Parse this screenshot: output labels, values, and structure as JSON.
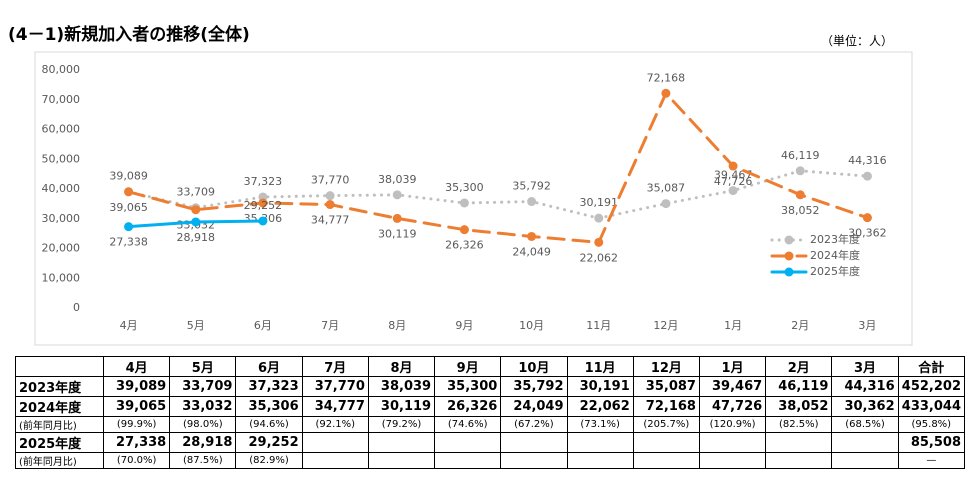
{
  "chart_data": {
    "type": "line",
    "title": "(4－1)新規加入者の推移(全体)",
    "unit_label": "（単位：人）",
    "categories": [
      "4月",
      "5月",
      "6月",
      "7月",
      "8月",
      "9月",
      "10月",
      "11月",
      "12月",
      "1月",
      "2月",
      "3月"
    ],
    "series": [
      {
        "name": "2023年度",
        "color": "#bfbfbf",
        "line_style": "dotted",
        "values": [
          39089,
          33709,
          37323,
          37770,
          38039,
          35300,
          35792,
          30191,
          35087,
          39467,
          46119,
          44316
        ],
        "value_labels": [
          "39,089",
          "33,709",
          "37,323",
          "37,770",
          "38,039",
          "35,300",
          "35,792",
          "30,191",
          "35,087",
          "39,467",
          "46,119",
          "44,316"
        ]
      },
      {
        "name": "2024年度",
        "color": "#ed7d31",
        "line_style": "dashed",
        "values": [
          39065,
          33032,
          35306,
          34777,
          30119,
          26326,
          24049,
          22062,
          72168,
          47726,
          38052,
          30362
        ],
        "value_labels": [
          "39,065",
          "33,032",
          "35,306",
          "34,777",
          "30,119",
          "26,326",
          "24,049",
          "22,062",
          "72,168",
          "47,726",
          "38,052",
          "30,362"
        ]
      },
      {
        "name": "2025年度",
        "color": "#00b0f0",
        "line_style": "solid",
        "values": [
          27338,
          28918,
          29252,
          null,
          null,
          null,
          null,
          null,
          null,
          null,
          null,
          null
        ],
        "value_labels": [
          "27,338",
          "28,918",
          "29,252",
          null,
          null,
          null,
          null,
          null,
          null,
          null,
          null,
          null
        ]
      }
    ],
    "ylim": [
      0,
      80000
    ],
    "yticks": [
      0,
      {
        "value": 10000,
        "label": "10,000"
      },
      {
        "value": 20000,
        "label": "20,000"
      },
      {
        "value": 30000,
        "label": "30,000"
      },
      {
        "value": 40000,
        "label": "40,000"
      },
      {
        "value": 50000,
        "label": "50,000"
      },
      {
        "value": 60000,
        "label": "60,000"
      },
      {
        "value": 70000,
        "label": "70,000"
      },
      {
        "value": 80000,
        "label": "80,000"
      }
    ],
    "grid": false
  },
  "table": {
    "total_header": "合計",
    "rows": [
      {
        "label": "2023年度",
        "cells": [
          "39,089",
          "33,709",
          "37,323",
          "37,770",
          "38,039",
          "35,300",
          "35,792",
          "30,191",
          "35,087",
          "39,467",
          "46,119",
          "44,316",
          "452,202"
        ]
      },
      {
        "label": "2024年度",
        "cells": [
          "39,065",
          "33,032",
          "35,306",
          "34,777",
          "30,119",
          "26,326",
          "24,049",
          "22,062",
          "72,168",
          "47,726",
          "38,052",
          "30,362",
          "433,044"
        ]
      },
      {
        "label": "(前年同月比)",
        "cells": [
          "(99.9%)",
          "(98.0%)",
          "(94.6%)",
          "(92.1%)",
          "(79.2%)",
          "(74.6%)",
          "(67.2%)",
          "(73.1%)",
          "(205.7%)",
          "(120.9%)",
          "(82.5%)",
          "(68.5%)",
          "(95.8%)"
        ]
      },
      {
        "label": "2025年度",
        "cells": [
          "27,338",
          "28,918",
          "29,252",
          null,
          null,
          null,
          null,
          null,
          null,
          null,
          null,
          null,
          "85,508"
        ]
      },
      {
        "label": "(前年同月比)",
        "cells": [
          "(70.0%)",
          "(87.5%)",
          "(82.9%)",
          null,
          null,
          null,
          null,
          null,
          null,
          null,
          null,
          null,
          "—"
        ]
      }
    ]
  }
}
